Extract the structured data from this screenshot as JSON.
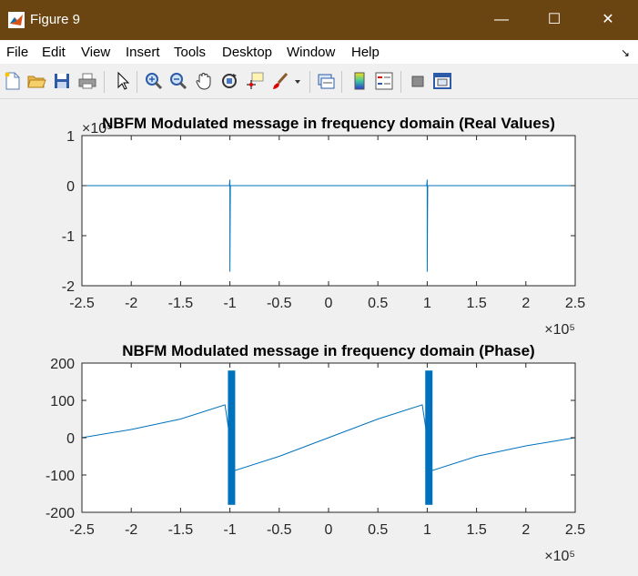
{
  "window": {
    "title": "Figure 9"
  },
  "window_controls": {
    "minimize": "—",
    "maximize": "☐",
    "close": "✕"
  },
  "menu": {
    "items": [
      "File",
      "Edit",
      "View",
      "Insert",
      "Tools",
      "Desktop",
      "Window",
      "Help"
    ],
    "dock_glyph": "↘"
  },
  "toolbar": {
    "icons": [
      "new-figure-icon",
      "open-file-icon",
      "save-icon",
      "print-icon",
      "pointer-icon",
      "zoom-in-icon",
      "zoom-out-icon",
      "pan-hand-icon",
      "rotate-3d-icon",
      "data-cursor-icon",
      "brush-icon",
      "brush-dropdown-icon",
      "link-plot-icon",
      "colorbar-icon",
      "legend-icon",
      "hide-plot-tools-icon",
      "show-plot-tools-icon"
    ]
  },
  "colors": {
    "titlebar": "#6b4511",
    "line": "#0072bd",
    "plot_background": "#ffffff",
    "figure_background": "#f0f0f0"
  },
  "chart_data": [
    {
      "type": "line",
      "title": "NBFM Modulated message in frequency domain (Real Values)",
      "xlabel": "",
      "ylabel": "",
      "xlim": [
        -250000,
        250000
      ],
      "ylim": [
        -2,
        1
      ],
      "x_ticks": [
        -2.5,
        -2,
        -1.5,
        -1,
        -0.5,
        0,
        0.5,
        1,
        1.5,
        2,
        2.5
      ],
      "x_tick_labels": [
        "-2.5",
        "-2",
        "-1.5",
        "-1",
        "-0.5",
        "0",
        "0.5",
        "1",
        "1.5",
        "2",
        "2.5"
      ],
      "y_ticks": [
        -2,
        -1,
        0,
        1
      ],
      "y_tick_labels": [
        "-2",
        "-1",
        "0",
        "1"
      ],
      "x_exponent": "×10⁵",
      "y_exponent": "×10⁵",
      "grid": false,
      "series": [
        {
          "x": [
            -250000,
            -100500,
            -100000,
            -100000,
            -99500,
            99500,
            100000,
            100000,
            100500,
            250000
          ],
          "y": [
            0,
            0,
            0.12,
            -1.72,
            0,
            0,
            0.12,
            -1.72,
            0,
            0
          ]
        }
      ]
    },
    {
      "type": "line",
      "title": "NBFM Modulated message in frequency domain (Phase)",
      "xlabel": "",
      "ylabel": "",
      "xlim": [
        -250000,
        250000
      ],
      "ylim": [
        -200,
        200
      ],
      "x_ticks": [
        -2.5,
        -2,
        -1.5,
        -1,
        -0.5,
        0,
        0.5,
        1,
        1.5,
        2,
        2.5
      ],
      "x_tick_labels": [
        "-2.5",
        "-2",
        "-1.5",
        "-1",
        "-0.5",
        "0",
        "0.5",
        "1",
        "1.5",
        "2",
        "2.5"
      ],
      "y_ticks": [
        -200,
        -100,
        0,
        100,
        200
      ],
      "y_tick_labels": [
        "-200",
        "-100",
        "0",
        "100",
        "200"
      ],
      "x_exponent": "×10⁵",
      "grid": false,
      "series": [
        {
          "x": [
            -250000,
            -200000,
            -150000,
            -105000,
            -100000,
            -95000,
            -50000,
            0,
            50000,
            95000,
            100000,
            105000,
            150000,
            200000,
            250000
          ],
          "y": [
            0,
            22,
            50,
            88,
            0,
            -88,
            -50,
            0,
            50,
            88,
            0,
            -88,
            -50,
            -22,
            0
          ]
        }
      ],
      "dense_bands": [
        {
          "x_center": -100000,
          "x_width": 4000,
          "y_min": -180,
          "y_max": 180
        },
        {
          "x_center": 100000,
          "x_width": 4000,
          "y_min": -180,
          "y_max": 180
        }
      ]
    }
  ]
}
